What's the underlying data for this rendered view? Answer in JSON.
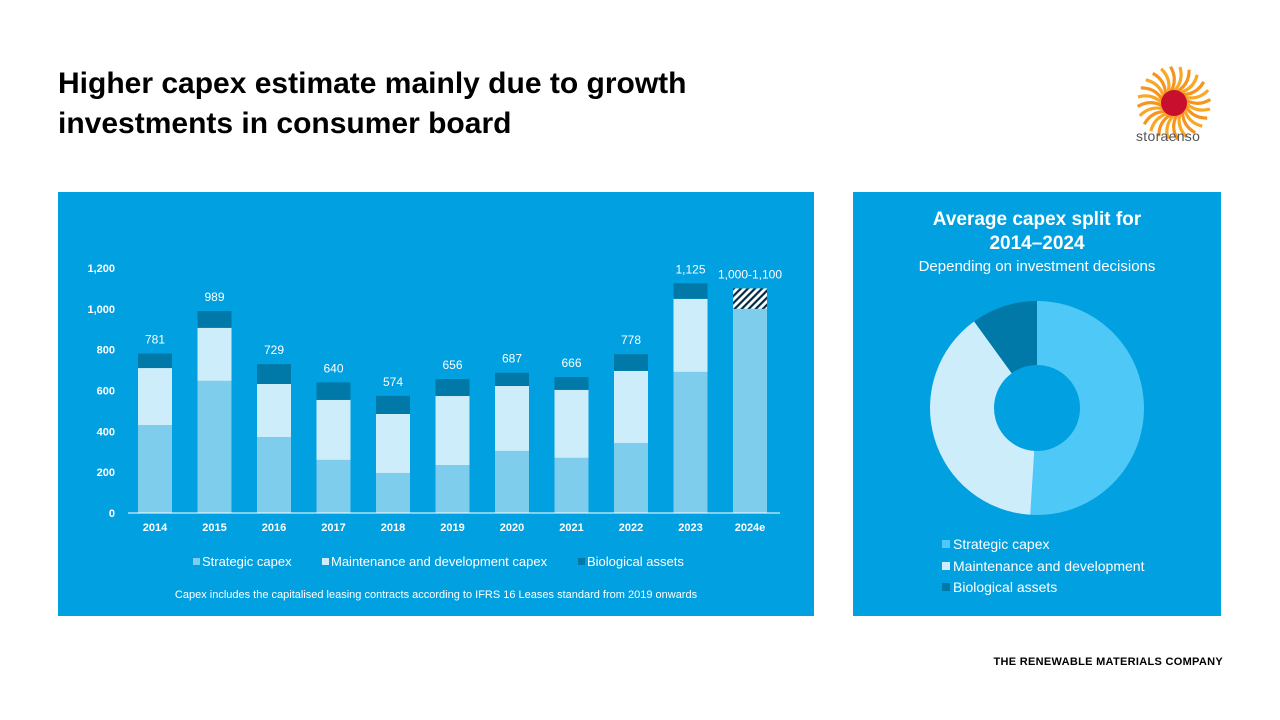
{
  "title_line1": "Higher capex estimate mainly due to growth",
  "title_line2": "investments in consumer board",
  "logo_text": "storaenso",
  "tagline": "THE RENEWABLE MATERIALS COMPANY",
  "colors": {
    "panel": "#00a0e1",
    "strategic": "#7fcdec",
    "maintenance": "#cdedfb",
    "biological": "#0079a8",
    "pie_strategic": "#4dc8f7",
    "pie_maintenance": "#cdedfb",
    "pie_biological": "#0079a8"
  },
  "chart_data": [
    {
      "type": "bar",
      "stacked": true,
      "categories": [
        "2014",
        "2015",
        "2016",
        "2017",
        "2018",
        "2019",
        "2020",
        "2021",
        "2022",
        "2023",
        "2024e"
      ],
      "series": [
        {
          "name": "Strategic capex",
          "values": [
            431,
            647,
            372,
            260,
            196,
            235,
            304,
            270,
            343,
            691,
            1000
          ]
        },
        {
          "name": "Maintenance and development capex",
          "values": [
            279,
            260,
            260,
            294,
            289,
            338,
            318,
            333,
            353,
            358,
            0
          ]
        },
        {
          "name": "Biological assets",
          "values": [
            71,
            82,
            97,
            86,
            89,
            83,
            65,
            63,
            82,
            76,
            0
          ]
        }
      ],
      "estimate_range": {
        "category": "2024e",
        "low": 1000,
        "high": 1100,
        "pattern": "hatched"
      },
      "totals_labels": [
        "781",
        "989",
        "729",
        "640",
        "574",
        "656",
        "687",
        "666",
        "778",
        "1,125",
        "1,000-1,100"
      ],
      "yticks": [
        "0",
        "200",
        "400",
        "600",
        "800",
        "1,000",
        "1,200"
      ],
      "ylim": [
        0,
        1200
      ],
      "grid": false,
      "legend": "bottom",
      "footnote": "Capex includes the capitalised leasing contracts according to IFRS 16 Leases standard from 2019 onwards"
    },
    {
      "type": "pie",
      "donut": true,
      "title_line1": "Average capex split for",
      "title_line2": "2014–2024",
      "subtitle": "Depending on investment decisions",
      "labels": [
        "Strategic capex",
        "Maintenance and development",
        "Biological assets"
      ],
      "values": [
        51,
        39,
        10
      ],
      "legend": "bottom-left"
    }
  ]
}
